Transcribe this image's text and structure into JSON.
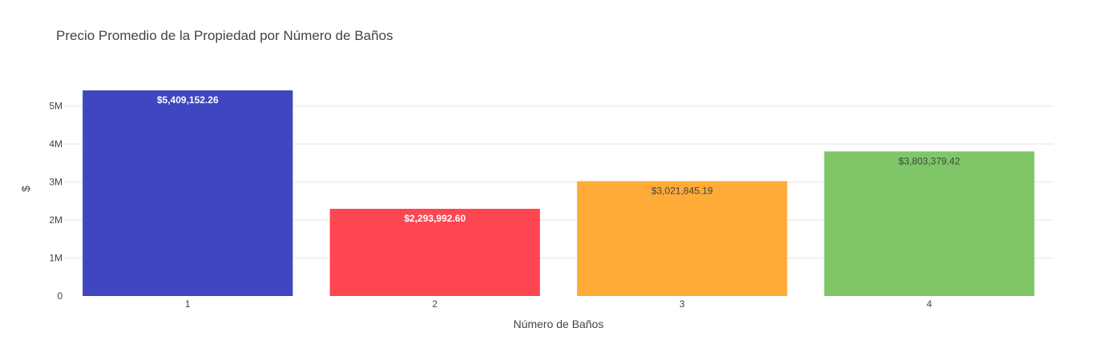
{
  "chart_data": {
    "type": "bar",
    "title": "Precio Promedio de la Propiedad por Número de Baños",
    "xlabel": "Número de Baños",
    "ylabel": "$",
    "categories": [
      "1",
      "2",
      "3",
      "4"
    ],
    "values": [
      5409152.26,
      2293992.6,
      3021845.19,
      3803379.42
    ],
    "data_labels": [
      "$5,409,152.26",
      "$2,293,992.60",
      "$3,021,845.19",
      "$3,803,379.42"
    ],
    "label_colors": [
      "#ffffff",
      "#ffffff",
      "#444444",
      "#444444"
    ],
    "colors": [
      "#3f46bf",
      "#fe4653",
      "#feab37",
      "#7ec667"
    ],
    "ylim": [
      0,
      5409152.26
    ],
    "y_ticks": [
      0,
      1000000,
      2000000,
      3000000,
      4000000,
      5000000
    ],
    "y_tick_labels": [
      "0",
      "1M",
      "2M",
      "3M",
      "4M",
      "5M"
    ],
    "grid": true,
    "legend": "none"
  }
}
